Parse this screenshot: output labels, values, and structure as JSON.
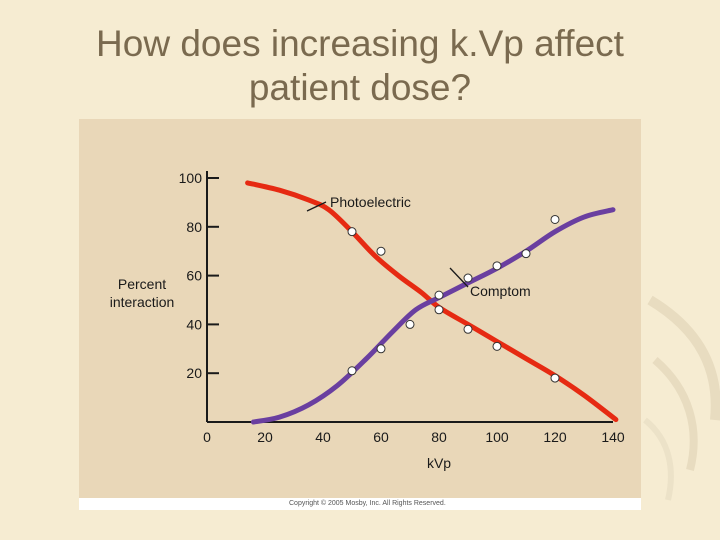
{
  "slide": {
    "title_line1": "How does increasing k.Vp affect",
    "title_line2": "patient dose?"
  },
  "colors": {
    "background": "#f6ecd2",
    "title": "#7a6a4f",
    "chart_background": "#e9d7b8",
    "photoelectric": "#e62a12",
    "compton": "#6a3fa0"
  },
  "chart_data": {
    "type": "line",
    "xlabel": "kVp",
    "ylabel": "Percent\ninteraction",
    "xlim": [
      0,
      140
    ],
    "ylim": [
      0,
      100
    ],
    "xticks": [
      0,
      20,
      40,
      60,
      80,
      100,
      120,
      140
    ],
    "yticks": [
      20,
      40,
      60,
      80,
      100
    ],
    "grid": false,
    "series": [
      {
        "name": "Photoelectric",
        "color": "#e62a12",
        "curve": [
          [
            14,
            98
          ],
          [
            25,
            95
          ],
          [
            35,
            91
          ],
          [
            42,
            87
          ],
          [
            50,
            78
          ],
          [
            58,
            68
          ],
          [
            66,
            60
          ],
          [
            74,
            53
          ],
          [
            80,
            47
          ],
          [
            90,
            40
          ],
          [
            100,
            33
          ],
          [
            110,
            26
          ],
          [
            120,
            19
          ],
          [
            130,
            11
          ],
          [
            141,
            1
          ]
        ],
        "points": [
          [
            50,
            78
          ],
          [
            60,
            70
          ],
          [
            80,
            46
          ],
          [
            90,
            38
          ],
          [
            100,
            31
          ],
          [
            120,
            18
          ]
        ]
      },
      {
        "name": "Comptom",
        "color": "#6a3fa0",
        "curve": [
          [
            16,
            0
          ],
          [
            25,
            2
          ],
          [
            35,
            7
          ],
          [
            45,
            15
          ],
          [
            55,
            26
          ],
          [
            64,
            37
          ],
          [
            72,
            46
          ],
          [
            80,
            51
          ],
          [
            90,
            57
          ],
          [
            100,
            63
          ],
          [
            110,
            70
          ],
          [
            120,
            78
          ],
          [
            130,
            84
          ],
          [
            140,
            87
          ]
        ],
        "points": [
          [
            50,
            21
          ],
          [
            60,
            30
          ],
          [
            70,
            40
          ],
          [
            80,
            52
          ],
          [
            90,
            59
          ],
          [
            100,
            64
          ],
          [
            110,
            69
          ],
          [
            120,
            83
          ]
        ]
      }
    ],
    "annotations": [
      {
        "text": "Photoelectric",
        "series": "Photoelectric"
      },
      {
        "text": "Comptom",
        "series": "Comptom"
      }
    ]
  },
  "footer": {
    "copyright": "Copyright © 2005 Mosby, Inc. All Rights Reserved."
  }
}
